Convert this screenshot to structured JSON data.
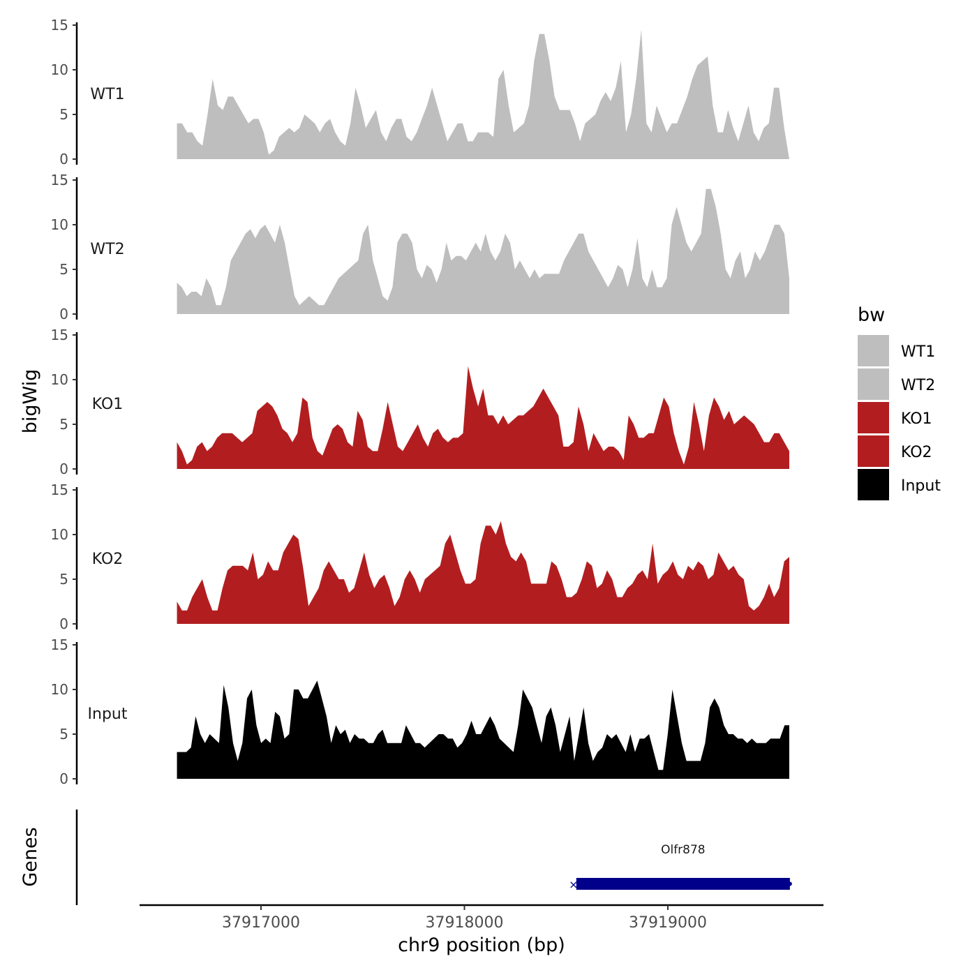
{
  "chart_data": {
    "type": "area",
    "ylabel": "bigWig",
    "xlabel": "chr9 position (bp)",
    "genes_label": "Genes",
    "legend_title": "bw",
    "legend_position": "right",
    "x_ticks": [
      37917000,
      37918000,
      37919000
    ],
    "x_tick_labels": [
      "37917000",
      "37918000",
      "37919000"
    ],
    "x_range": [
      37916580,
      37919600
    ],
    "ylim": [
      0,
      15
    ],
    "y_ticks": [
      0,
      5,
      10,
      15
    ],
    "y_tick_labels": [
      "0",
      "5",
      "10",
      "15"
    ],
    "colors": {
      "WT1": "#bebebe",
      "WT2": "#bebebe",
      "KO1": "#b21e20",
      "KO2": "#b21e20",
      "Input": "#000000",
      "gene": "#00008b"
    },
    "series": [
      {
        "name": "WT1",
        "color": "#bebebe",
        "values": [
          4,
          4,
          3,
          3,
          2,
          1.5,
          5,
          9,
          6,
          5.5,
          7,
          7,
          6,
          5,
          4,
          4.5,
          4.5,
          3,
          0.5,
          1,
          2.5,
          3,
          3.5,
          3,
          3.5,
          5,
          4.5,
          4,
          3,
          4,
          4.5,
          3,
          2,
          1.5,
          4,
          8,
          6,
          3.5,
          4.5,
          5.5,
          3,
          2,
          3.5,
          4.5,
          4.5,
          2.5,
          2,
          3,
          4.5,
          6,
          8,
          6,
          4,
          2,
          3,
          4,
          4,
          2,
          2,
          3,
          3,
          3,
          2.5,
          9,
          10,
          6,
          3,
          3.5,
          4,
          6,
          11,
          14,
          14,
          11,
          7,
          5.5,
          5.5,
          5.5,
          4,
          2,
          4,
          4.5,
          5,
          6.5,
          7.5,
          6.5,
          8,
          11,
          3,
          5,
          9,
          14.5,
          4,
          3,
          6,
          4.5,
          3,
          4,
          4,
          5.5,
          7,
          9,
          10.5,
          11,
          11.5,
          6,
          3,
          3,
          5.5,
          3.5,
          2,
          4,
          6,
          3,
          2,
          3.5,
          4,
          8,
          8,
          3.5,
          0
        ],
        "peaks": []
      },
      {
        "name": "WT2",
        "color": "#bebebe",
        "values": [
          3.5,
          3,
          2,
          2.5,
          2.5,
          2,
          4,
          3,
          1,
          1,
          3,
          6,
          7,
          8,
          9,
          9.5,
          8.5,
          9.5,
          10,
          9,
          8,
          10,
          8,
          5,
          2,
          1,
          1.5,
          2,
          1.5,
          1,
          1,
          2,
          3,
          4,
          4.5,
          5,
          5.5,
          6,
          9,
          10,
          6,
          4,
          2,
          1.5,
          3,
          8,
          9,
          9,
          8,
          5,
          4,
          5.5,
          5,
          3.5,
          5,
          8,
          6,
          6.5,
          6.5,
          6,
          7,
          8,
          7,
          9,
          7,
          6,
          7,
          9,
          8,
          5,
          6,
          5,
          4,
          5,
          4,
          4.5,
          4.5,
          4.5,
          4.5,
          6,
          7,
          8,
          9,
          9,
          7,
          6,
          5,
          4,
          3,
          4,
          5.5,
          5,
          3,
          5,
          8.5,
          4,
          3,
          5,
          3,
          3,
          4,
          10,
          12,
          10,
          8,
          7,
          8,
          9,
          14,
          14,
          12,
          9,
          5,
          4,
          6,
          7,
          4,
          5,
          7,
          6,
          7,
          8.5,
          10,
          10,
          9,
          4
        ],
        "peaks": []
      },
      {
        "name": "KO1",
        "color": "#b21e20",
        "values": [
          3,
          2,
          0.5,
          1,
          2.5,
          3,
          2,
          2.5,
          3.5,
          4,
          4,
          4,
          3.5,
          3,
          3.5,
          4,
          6.5,
          7,
          7.5,
          7,
          6,
          4.5,
          4,
          3,
          4,
          8,
          7.5,
          3.5,
          2,
          1.5,
          3,
          4.5,
          5,
          4.5,
          3,
          2.5,
          6.5,
          5.5,
          2.5,
          2,
          2,
          4.5,
          7.5,
          5,
          2.5,
          2,
          3,
          4,
          5,
          3.5,
          2.5,
          4,
          4.5,
          3.5,
          3,
          3.5,
          3.5,
          4,
          11.5,
          9,
          7,
          9,
          6,
          6,
          5,
          6,
          5,
          5.5,
          6,
          6,
          6.5,
          7,
          8,
          9,
          8,
          7,
          6,
          2.5,
          2.5,
          3,
          7,
          5,
          2,
          4,
          3,
          2,
          2.5,
          2.5,
          2,
          1,
          6,
          5,
          3.5,
          3.5,
          4,
          4,
          6,
          8,
          7,
          4,
          2,
          0.5,
          2.5,
          7.5,
          5,
          2,
          6,
          8,
          7,
          5.5,
          6.5,
          5,
          5.5,
          6,
          5.5,
          5,
          4,
          3,
          3,
          4,
          4,
          3,
          2
        ],
        "peaks": []
      },
      {
        "name": "KO2",
        "color": "#b21e20",
        "values": [
          2.5,
          1.5,
          1.5,
          3,
          4,
          5,
          3,
          1.5,
          1.5,
          4,
          6,
          6.5,
          6.5,
          6.5,
          6,
          8,
          5,
          5.5,
          7,
          6,
          6,
          8,
          9,
          10,
          9.5,
          6,
          2,
          3,
          4,
          6,
          7,
          6,
          5,
          5,
          3.5,
          4,
          6,
          8,
          5.5,
          4,
          5,
          5.5,
          4,
          2,
          3,
          5,
          6,
          5,
          3.5,
          5,
          5.5,
          6,
          6.5,
          9,
          10,
          8,
          6,
          4.5,
          4.5,
          5,
          9,
          11,
          11,
          10,
          11.5,
          9,
          7.5,
          7,
          8,
          7,
          4.5,
          4.5,
          4.5,
          4.5,
          7,
          6.5,
          5,
          3,
          3,
          3.5,
          5,
          7,
          6.5,
          4,
          4.5,
          6,
          5,
          3,
          3,
          4,
          4.5,
          5.5,
          6,
          5,
          9,
          4.5,
          5.5,
          6,
          7,
          5.5,
          5,
          6.5,
          6,
          7,
          6.5,
          5,
          5.5,
          8,
          7,
          6,
          6.5,
          5.5,
          5,
          2,
          1.5,
          2,
          3,
          4.5,
          3,
          4,
          7,
          7.5
        ],
        "peaks": []
      },
      {
        "name": "Input",
        "color": "#000000",
        "values": [
          3,
          3,
          3,
          3.5,
          7,
          5,
          4,
          5,
          4.5,
          4,
          10.5,
          8,
          4,
          2,
          4,
          9,
          10,
          6,
          4,
          4.5,
          4,
          7.5,
          7,
          4.5,
          5,
          10,
          10,
          9,
          9,
          10,
          11,
          9,
          7,
          4,
          6,
          5,
          5.5,
          4,
          5,
          4.5,
          4.5,
          4,
          4,
          5,
          5.5,
          4,
          4,
          4,
          4,
          6,
          5,
          4,
          4,
          3.5,
          4,
          4.5,
          5,
          5,
          4.5,
          4.5,
          3.5,
          4,
          5,
          6.5,
          5,
          5,
          6,
          7,
          6,
          4.5,
          4,
          3.5,
          3,
          6,
          10,
          9,
          8,
          6,
          4,
          7,
          8,
          6,
          3,
          5,
          7,
          2,
          5,
          8,
          4,
          2,
          3,
          3.5,
          5,
          4.5,
          5,
          4,
          3,
          5,
          3,
          4.5,
          4.5,
          5,
          3,
          1,
          1,
          5,
          10,
          7,
          4,
          2,
          2,
          2,
          2,
          4,
          8,
          9,
          8,
          6,
          5,
          5,
          4.5,
          4.5,
          4,
          4.5,
          4,
          4,
          4,
          4.5,
          4.5,
          4.5,
          6,
          6
        ],
        "peaks": []
      }
    ],
    "genes": [
      {
        "name": "Olfr878",
        "start": 37918550,
        "end": 37919600,
        "strand": "-"
      }
    ]
  }
}
